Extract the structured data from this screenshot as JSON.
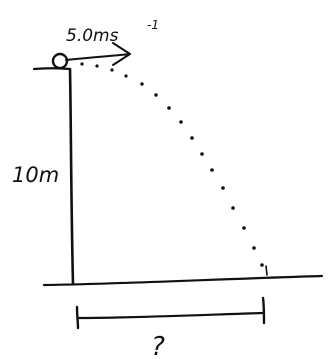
{
  "labels": {
    "velocity": "5.0ms",
    "velocity_exponent": "-1",
    "height": "10m",
    "distance": "?"
  }
}
